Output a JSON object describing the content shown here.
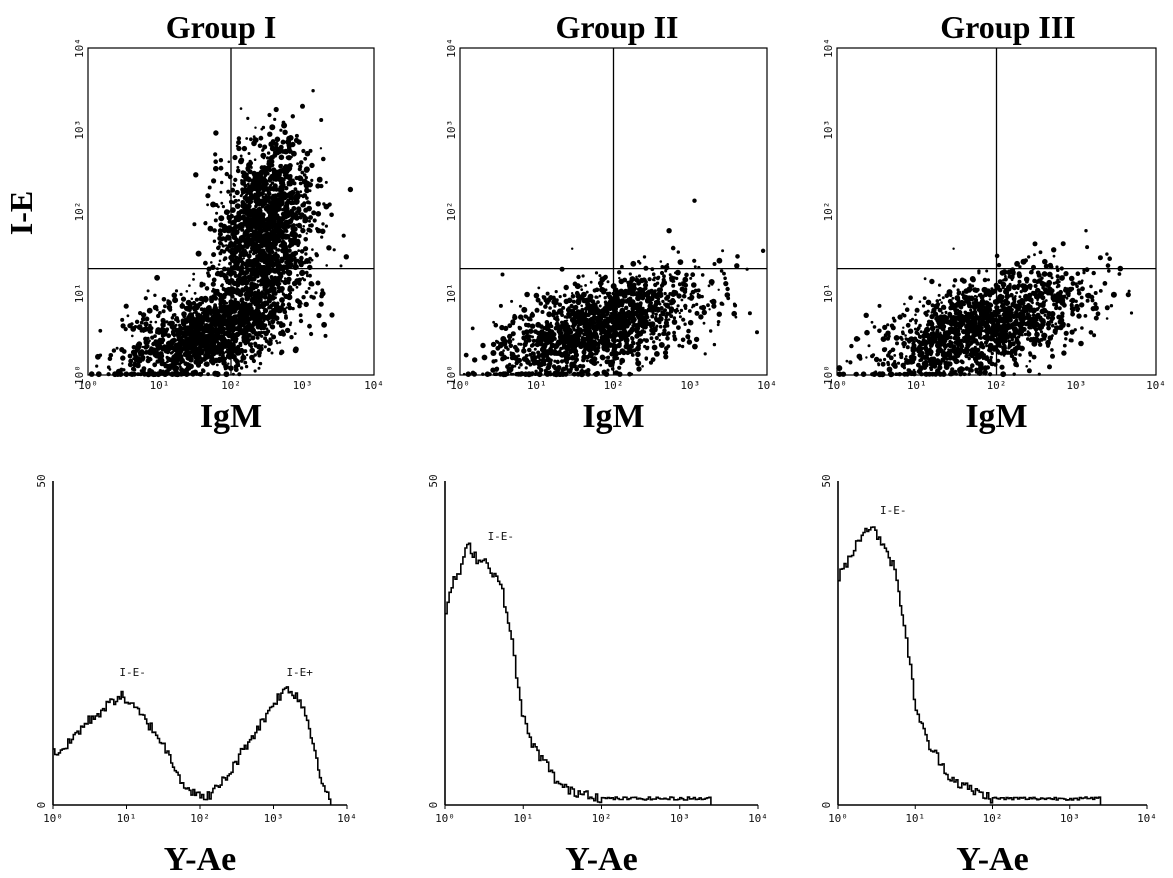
{
  "figure": {
    "group_titles": [
      "Group I",
      "Group II",
      "Group III"
    ],
    "scatter_ylabel": "I-E"
  },
  "chart_data": [
    {
      "type": "scatter",
      "title": "Group I",
      "xlabel": "IgM",
      "ylabel": "I-E",
      "x_scale": "log",
      "y_scale": "log",
      "xlim": [
        1,
        10000
      ],
      "ylim": [
        1,
        10000
      ],
      "x_ticks": [
        "10⁰",
        "10¹",
        "10²",
        "10³",
        "10⁴"
      ],
      "y_ticks": [
        "10⁰",
        "10¹",
        "10²",
        "10³",
        "10⁴"
      ],
      "quadrant_gates": {
        "x": 100,
        "y": 20
      },
      "populations": [
        {
          "x_range": [
            3,
            900
          ],
          "y_range": [
            1,
            12
          ]
        },
        {
          "x_range": [
            60,
            1500
          ],
          "y_range": [
            6,
            700
          ]
        }
      ]
    },
    {
      "type": "scatter",
      "title": "Group II",
      "xlabel": "IgM",
      "ylabel": "I-E",
      "x_scale": "log",
      "y_scale": "log",
      "xlim": [
        1,
        10000
      ],
      "ylim": [
        1,
        10000
      ],
      "x_ticks": [
        "10⁰",
        "10¹",
        "10²",
        "10³",
        "10⁴"
      ],
      "y_ticks": [
        "10⁰",
        "10¹",
        "10²",
        "10³",
        "10⁴"
      ],
      "quadrant_gates": {
        "x": 100,
        "y": 20
      },
      "populations": [
        {
          "x_range": [
            3,
            1500
          ],
          "y_range": [
            1,
            15
          ]
        }
      ]
    },
    {
      "type": "scatter",
      "title": "Group III",
      "xlabel": "IgM",
      "ylabel": "I-E",
      "x_scale": "log",
      "y_scale": "log",
      "xlim": [
        1,
        10000
      ],
      "ylim": [
        1,
        10000
      ],
      "x_ticks": [
        "10⁰",
        "10¹",
        "10²",
        "10³",
        "10⁴"
      ],
      "y_ticks": [
        "10⁰",
        "10¹",
        "10²",
        "10³",
        "10⁴"
      ],
      "quadrant_gates": {
        "x": 100,
        "y": 20
      },
      "populations": [
        {
          "x_range": [
            3,
            1500
          ],
          "y_range": [
            1,
            15
          ]
        }
      ]
    },
    {
      "type": "line",
      "subtype": "histogram",
      "xlabel": "Y-Ae",
      "x_scale": "log",
      "xlim": [
        1,
        10000
      ],
      "ylim": [
        0,
        50
      ],
      "x_ticks": [
        "10⁰",
        "10¹",
        "10²",
        "10³",
        "10⁴"
      ],
      "y_ticks": [
        "0",
        "50"
      ],
      "annotations": [
        {
          "text": "I-E-",
          "x": 8,
          "y": 19
        },
        {
          "text": "I-E+",
          "x": 1500,
          "y": 19
        }
      ],
      "x": [
        1,
        1.5,
        2,
        3,
        5,
        8,
        10,
        15,
        25,
        40,
        60,
        80,
        100,
        150,
        250,
        400,
        700,
        1000,
        1500,
        2000,
        2500,
        3000,
        4000,
        5000,
        6000
      ],
      "values": [
        8,
        9,
        11,
        13,
        15,
        17,
        16,
        14,
        11,
        7,
        3,
        2,
        1,
        2,
        5,
        9,
        13,
        16,
        18,
        17,
        15,
        12,
        6,
        2,
        0
      ]
    },
    {
      "type": "line",
      "subtype": "histogram",
      "xlabel": "Y-Ae",
      "x_scale": "log",
      "xlim": [
        1,
        10000
      ],
      "ylim": [
        0,
        50
      ],
      "x_ticks": [
        "10⁰",
        "10¹",
        "10²",
        "10³",
        "10⁴"
      ],
      "y_ticks": [
        "0",
        "50"
      ],
      "annotations": [
        {
          "text": "I-E-",
          "x": 3.5,
          "y": 40
        }
      ],
      "x": [
        1,
        1.2,
        1.5,
        1.8,
        2,
        2.5,
        3,
        4,
        5,
        6,
        7,
        8,
        9,
        10,
        12,
        15,
        20,
        25,
        30,
        40,
        60,
        100,
        200,
        500,
        1000,
        2500
      ],
      "values": [
        30,
        34,
        36,
        39,
        40,
        38,
        38,
        36,
        34,
        30,
        25,
        20,
        16,
        13,
        10,
        8,
        6,
        4,
        3,
        2,
        2,
        1,
        1,
        1,
        1,
        1
      ]
    },
    {
      "type": "line",
      "subtype": "histogram",
      "xlabel": "Y-Ae",
      "x_scale": "log",
      "xlim": [
        1,
        10000
      ],
      "ylim": [
        0,
        50
      ],
      "x_ticks": [
        "10⁰",
        "10¹",
        "10²",
        "10³",
        "10⁴"
      ],
      "y_ticks": [
        "0",
        "50"
      ],
      "annotations": [
        {
          "text": "I-E-",
          "x": 3.5,
          "y": 44
        }
      ],
      "x": [
        1,
        1.2,
        1.5,
        1.8,
        2,
        2.5,
        3,
        4,
        5,
        6,
        7,
        8,
        9,
        10,
        12,
        15,
        20,
        25,
        30,
        40,
        60,
        100,
        200,
        500,
        1000,
        2500
      ],
      "values": [
        35,
        37,
        39,
        41,
        42,
        43,
        42,
        40,
        37,
        33,
        28,
        23,
        19,
        15,
        12,
        9,
        7,
        5,
        4,
        3,
        2,
        1,
        1,
        1,
        1,
        1
      ]
    }
  ]
}
